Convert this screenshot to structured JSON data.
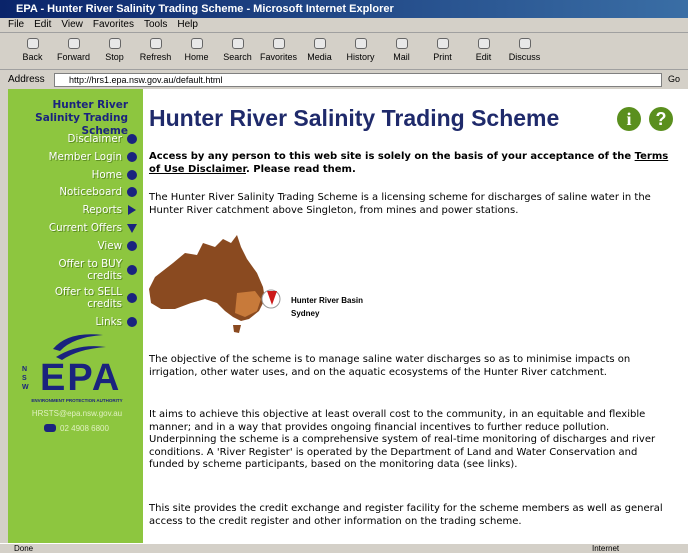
{
  "window": {
    "title": "EPA - Hunter River Salinity Trading Scheme - Microsoft Internet Explorer"
  },
  "menu": [
    "File",
    "Edit",
    "View",
    "Favorites",
    "Tools",
    "Help"
  ],
  "toolbar": [
    "Back",
    "Forward",
    "Stop",
    "Refresh",
    "Home",
    "Search",
    "Favorites",
    "Media",
    "History",
    "Mail",
    "Print",
    "Edit",
    "Discuss"
  ],
  "address": {
    "label": "Address",
    "url": "http://hrs1.epa.nsw.gov.au/default.html",
    "go": "Go"
  },
  "sidebar": {
    "title": "Hunter River Salinity Trading Scheme",
    "links": [
      {
        "label": "Disclaimer",
        "icon": "dot"
      },
      {
        "label": "Member Login",
        "icon": "dot"
      },
      {
        "label": "Home",
        "icon": "dot"
      },
      {
        "label": "Noticeboard",
        "icon": "dot"
      },
      {
        "label": "Reports",
        "icon": "arrow-right"
      },
      {
        "label": "Current Offers",
        "icon": "arrow-down"
      },
      {
        "label": "View",
        "icon": "dot"
      },
      {
        "label": "Offer to BUY credits",
        "icon": "dot"
      },
      {
        "label": "Offer to SELL credits",
        "icon": "dot"
      },
      {
        "label": "Links",
        "icon": "dot"
      }
    ],
    "logo": "EPA",
    "logo_side": "NSW",
    "org": "ENVIRONMENT PROTECTION AUTHORITY",
    "email": "HRSTS@epa.nsw.gov.au",
    "phone": "02 4908 6800"
  },
  "main": {
    "heading": "Hunter River Salinity Trading Scheme",
    "info_icon": "i",
    "help_icon": "?",
    "notice": {
      "before": "Access by any person to this web site is solely on the basis of your acceptance of the ",
      "link": "Terms of Use Disclaimer",
      "after": ". Please read them."
    },
    "intro": "The Hunter River Salinity Trading Scheme is a licensing scheme for discharges of saline water in the Hunter River catchment above Singleton, from mines and power stations.",
    "map_labels": [
      "Hunter River Basin",
      "Sydney"
    ],
    "paragraphs": [
      "The objective of the scheme is to manage saline water discharges so as to minimise impacts on irrigation, other water uses, and on the aquatic ecosystems of the Hunter River catchment.",
      "It aims to achieve this objective at least overall cost to the community, in an equitable and flexible manner; and in a way that provides ongoing financial incentives to further reduce pollution. Underpinning the scheme is a comprehensive system of real-time monitoring of discharges and river conditions. A 'River Register' is operated by the Department of Land and Water Conservation and funded by scheme participants, based on the monitoring data (see links).",
      "This site provides the credit exchange and register facility for the scheme members as well as general access to the credit register and other information on the trading scheme."
    ]
  },
  "status": {
    "text": "Done",
    "zone": "Internet"
  }
}
